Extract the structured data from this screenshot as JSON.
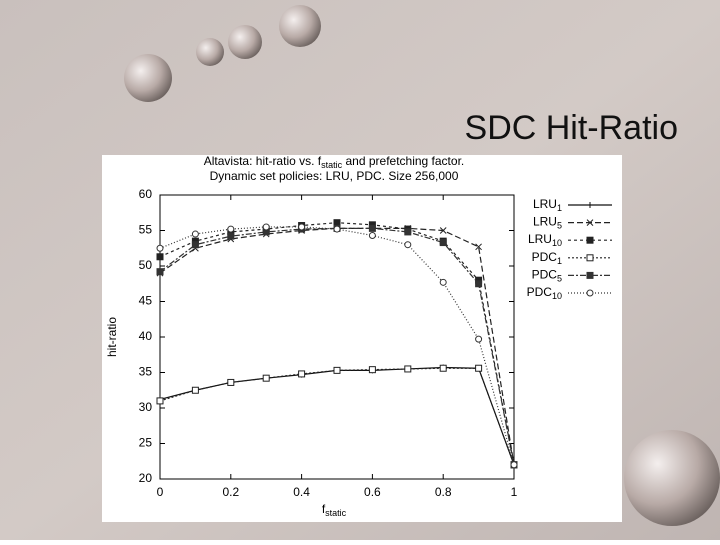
{
  "slide_title": "SDC Hit-Ratio",
  "chart_data": {
    "type": "line",
    "title": "Altavista: hit-ratio vs. fstatic and prefetching factor.",
    "subtitle": "Dynamic set policies: LRU, PDC. Size 256,000",
    "xlabel": "fstatic",
    "ylabel": "hit-ratio",
    "x": [
      0,
      0.1,
      0.2,
      0.3,
      0.4,
      0.5,
      0.6,
      0.7,
      0.8,
      0.9,
      1
    ],
    "xlim": [
      0,
      1
    ],
    "xticks": [
      0,
      0.2,
      0.4,
      0.6,
      0.8,
      1
    ],
    "ylim": [
      20,
      60
    ],
    "yticks": [
      20,
      25,
      30,
      35,
      40,
      45,
      50,
      55,
      60
    ],
    "series": [
      {
        "name": "LRU1",
        "color": "#111111",
        "dash": "",
        "marker": "plus",
        "values": [
          31.2,
          32.5,
          33.6,
          34.2,
          34.7,
          35.3,
          35.3,
          35.5,
          35.7,
          35.6,
          22
        ]
      },
      {
        "name": "LRU5",
        "color": "#222222",
        "dash": "6 3",
        "marker": "cross",
        "values": [
          49,
          52.5,
          53.8,
          54.5,
          55,
          55.3,
          55.3,
          55.3,
          55,
          52.7,
          22
        ]
      },
      {
        "name": "LRU10",
        "color": "#222222",
        "dash": "3 3",
        "marker": "square",
        "values": [
          51.3,
          53.5,
          54.8,
          55.2,
          55.7,
          56.1,
          55.8,
          55.2,
          53.5,
          48,
          22
        ]
      },
      {
        "name": "PDC1",
        "color": "#222222",
        "dash": "2 2",
        "marker": "osquare",
        "values": [
          31,
          32.5,
          33.6,
          34.2,
          34.8,
          35.3,
          35.4,
          35.5,
          35.6,
          35.6,
          22
        ]
      },
      {
        "name": "PDC5",
        "color": "#333333",
        "dash": "6 2 2 2",
        "marker": "square",
        "values": [
          49.2,
          53,
          54.2,
          54.8,
          55.2,
          55.3,
          55.3,
          54.8,
          53.3,
          47.5,
          22
        ]
      },
      {
        "name": "PDC10",
        "color": "#333333",
        "dash": "1 2",
        "marker": "circle",
        "values": [
          52.5,
          54.5,
          55.2,
          55.5,
          55.5,
          55.2,
          54.3,
          53,
          47.7,
          39.7,
          22
        ]
      }
    ]
  }
}
